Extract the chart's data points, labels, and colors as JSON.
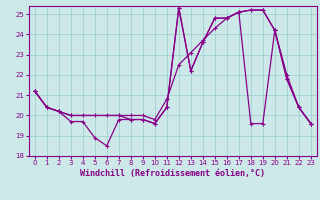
{
  "xlabel": "Windchill (Refroidissement éolien,°C)",
  "bg_color": "#cce8e8",
  "grid_color": "#99cccc",
  "line_color": "#880088",
  "xlim": [
    -0.5,
    23.5
  ],
  "ylim": [
    18,
    25.4
  ],
  "yticks": [
    18,
    19,
    20,
    21,
    22,
    23,
    24,
    25
  ],
  "xticks": [
    0,
    1,
    2,
    3,
    4,
    5,
    6,
    7,
    8,
    9,
    10,
    11,
    12,
    13,
    14,
    15,
    16,
    17,
    18,
    19,
    20,
    21,
    22,
    23
  ],
  "line1_x": [
    0,
    1,
    2,
    3,
    4,
    5,
    6,
    7,
    8,
    9,
    10,
    11,
    12,
    13,
    14,
    15,
    16,
    17,
    18,
    19,
    20,
    21,
    22,
    23
  ],
  "line1_y": [
    21.2,
    20.4,
    20.2,
    19.7,
    19.7,
    18.9,
    18.5,
    19.8,
    19.8,
    19.8,
    19.6,
    20.4,
    25.3,
    22.2,
    23.6,
    24.8,
    24.8,
    25.1,
    19.6,
    19.6,
    24.2,
    21.8,
    20.4,
    19.6
  ],
  "line2_x": [
    0,
    1,
    2,
    3,
    7,
    8,
    9,
    10,
    11,
    12,
    13,
    14,
    15,
    16,
    17,
    18,
    19,
    20,
    21,
    22,
    23
  ],
  "line2_y": [
    21.2,
    20.4,
    20.2,
    20.0,
    20.0,
    19.8,
    19.8,
    19.6,
    20.4,
    25.3,
    22.2,
    23.6,
    24.8,
    24.8,
    25.1,
    25.2,
    25.2,
    24.2,
    21.8,
    20.4,
    19.6
  ],
  "line3_x": [
    0,
    1,
    2,
    3,
    4,
    5,
    6,
    7,
    8,
    9,
    10,
    11,
    12,
    13,
    14,
    15,
    16,
    17,
    18,
    19,
    20,
    21,
    22,
    23
  ],
  "line3_y": [
    21.2,
    20.4,
    20.2,
    20.0,
    20.0,
    20.0,
    20.0,
    20.0,
    20.0,
    20.0,
    19.8,
    20.8,
    22.5,
    23.1,
    23.7,
    24.3,
    24.8,
    25.1,
    25.2,
    25.2,
    24.2,
    22.0,
    20.4,
    19.6
  ],
  "marker_size": 3,
  "line_width": 0.9,
  "tick_fontsize": 5.0,
  "label_fontsize": 6.0
}
